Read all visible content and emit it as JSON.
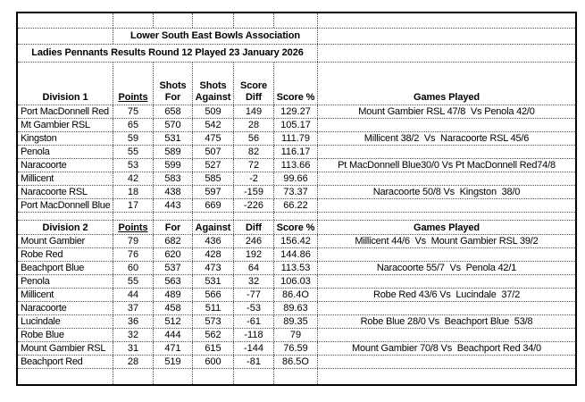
{
  "titles": {
    "association": "Lower South East Bowls Association",
    "round": "Ladies Pennants Results Round 12 Played 23 January 2026"
  },
  "divisions": [
    {
      "label": "Division 1",
      "header_cells": [
        {
          "lines": [
            "Division 1"
          ]
        },
        {
          "lines": [
            "Points"
          ],
          "underline": true
        },
        {
          "lines": [
            "Shots",
            "For"
          ]
        },
        {
          "lines": [
            "Shots",
            "Against"
          ]
        },
        {
          "lines": [
            "Score",
            "Diff"
          ]
        },
        {
          "lines": [
            "Score %"
          ]
        },
        {
          "lines": [
            "Games Played"
          ]
        }
      ],
      "rows": [
        {
          "team": "Port MacDonnell Red",
          "points": "75",
          "for": "658",
          "against": "509",
          "diff": "149",
          "score_pct": "129.27",
          "game": "Mount Gambier RSL 47/8  Vs Penola 42/0"
        },
        {
          "team": "Mt Gambier RSL",
          "points": "65",
          "for": "570",
          "against": "542",
          "diff": "28",
          "score_pct": "105.17",
          "game": ""
        },
        {
          "team": "Kingston",
          "points": "59",
          "for": "531",
          "against": "475",
          "diff": "56",
          "score_pct": "111.79",
          "game": "Millicent 38/2  Vs  Naracoorte RSL 45/6"
        },
        {
          "team": "Penola",
          "points": "55",
          "for": "589",
          "against": "507",
          "diff": "82",
          "score_pct": "116.17",
          "game": ""
        },
        {
          "team": "Naracoorte",
          "points": "53",
          "for": "599",
          "against": "527",
          "diff": "72",
          "score_pct": "113.66",
          "game": "Pt MacDonnell Blue30/0 Vs Pt MacDonnell Red74/8"
        },
        {
          "team": "Millicent",
          "points": "42",
          "for": "583",
          "against": "585",
          "diff": "-2",
          "score_pct": "99.66",
          "game": ""
        },
        {
          "team": "Naracoorte RSL",
          "points": "18",
          "for": "438",
          "against": "597",
          "diff": "-159",
          "score_pct": "73.37",
          "game": "Naracoorte 50/8 Vs  Kingston  38/0"
        },
        {
          "team": "Port MacDonnell Blue",
          "points": "17",
          "for": "443",
          "against": "669",
          "diff": "-226",
          "score_pct": "66.22",
          "game": ""
        }
      ]
    },
    {
      "label": "Division 2",
      "header_cells": [
        {
          "lines": [
            "Division 2"
          ]
        },
        {
          "lines": [
            "Points"
          ],
          "underline": true
        },
        {
          "lines": [
            "For"
          ]
        },
        {
          "lines": [
            "Against"
          ]
        },
        {
          "lines": [
            "Diff"
          ]
        },
        {
          "lines": [
            "Score %"
          ]
        },
        {
          "lines": [
            "Games Played"
          ]
        }
      ],
      "rows": [
        {
          "team": "Mount Gambier",
          "points": "79",
          "for": "682",
          "against": "436",
          "diff": "246",
          "score_pct": "156.42",
          "game": "Millicent 44/6  Vs  Mount Gambier RSL 39/2"
        },
        {
          "team": "Robe Red",
          "points": "76",
          "for": "620",
          "against": "428",
          "diff": "192",
          "score_pct": "144.86",
          "game": ""
        },
        {
          "team": "Beachport Blue",
          "points": "60",
          "for": "537",
          "against": "473",
          "diff": "64",
          "score_pct": "113.53",
          "game": "Naracoorte 55/7  Vs  Penola 42/1"
        },
        {
          "team": "Penola",
          "points": "55",
          "for": "563",
          "against": "531",
          "diff": "32",
          "score_pct": "106.03",
          "game": ""
        },
        {
          "team": "Millicent",
          "points": "44",
          "for": "489",
          "against": "566",
          "diff": "-77",
          "score_pct": "86.4O",
          "game": "Robe Red 43/6 Vs  Lucindale  37/2"
        },
        {
          "team": "Naracoorte",
          "points": "37",
          "for": "458",
          "against": "511",
          "diff": "-53",
          "score_pct": "89.63",
          "game": ""
        },
        {
          "team": "Lucindale",
          "points": "36",
          "for": "512",
          "against": "573",
          "diff": "-61",
          "score_pct": "89.35",
          "game": "Robe Blue 28/0 Vs  Beachport Blue  53/8"
        },
        {
          "team": "Robe Blue",
          "points": "32",
          "for": "444",
          "against": "562",
          "diff": "-118",
          "score_pct": "79",
          "game": ""
        },
        {
          "team": "Mount Gambier RSL",
          "points": "31",
          "for": "471",
          "against": "615",
          "diff": "-144",
          "score_pct": "76.59",
          "game": "Mount Gambier 70/8 Vs  Beachport Red 34/0"
        },
        {
          "team": "Beachport Red",
          "points": "28",
          "for": "519",
          "against": "600",
          "diff": "-81",
          "score_pct": "86.5O",
          "game": ""
        }
      ]
    }
  ]
}
